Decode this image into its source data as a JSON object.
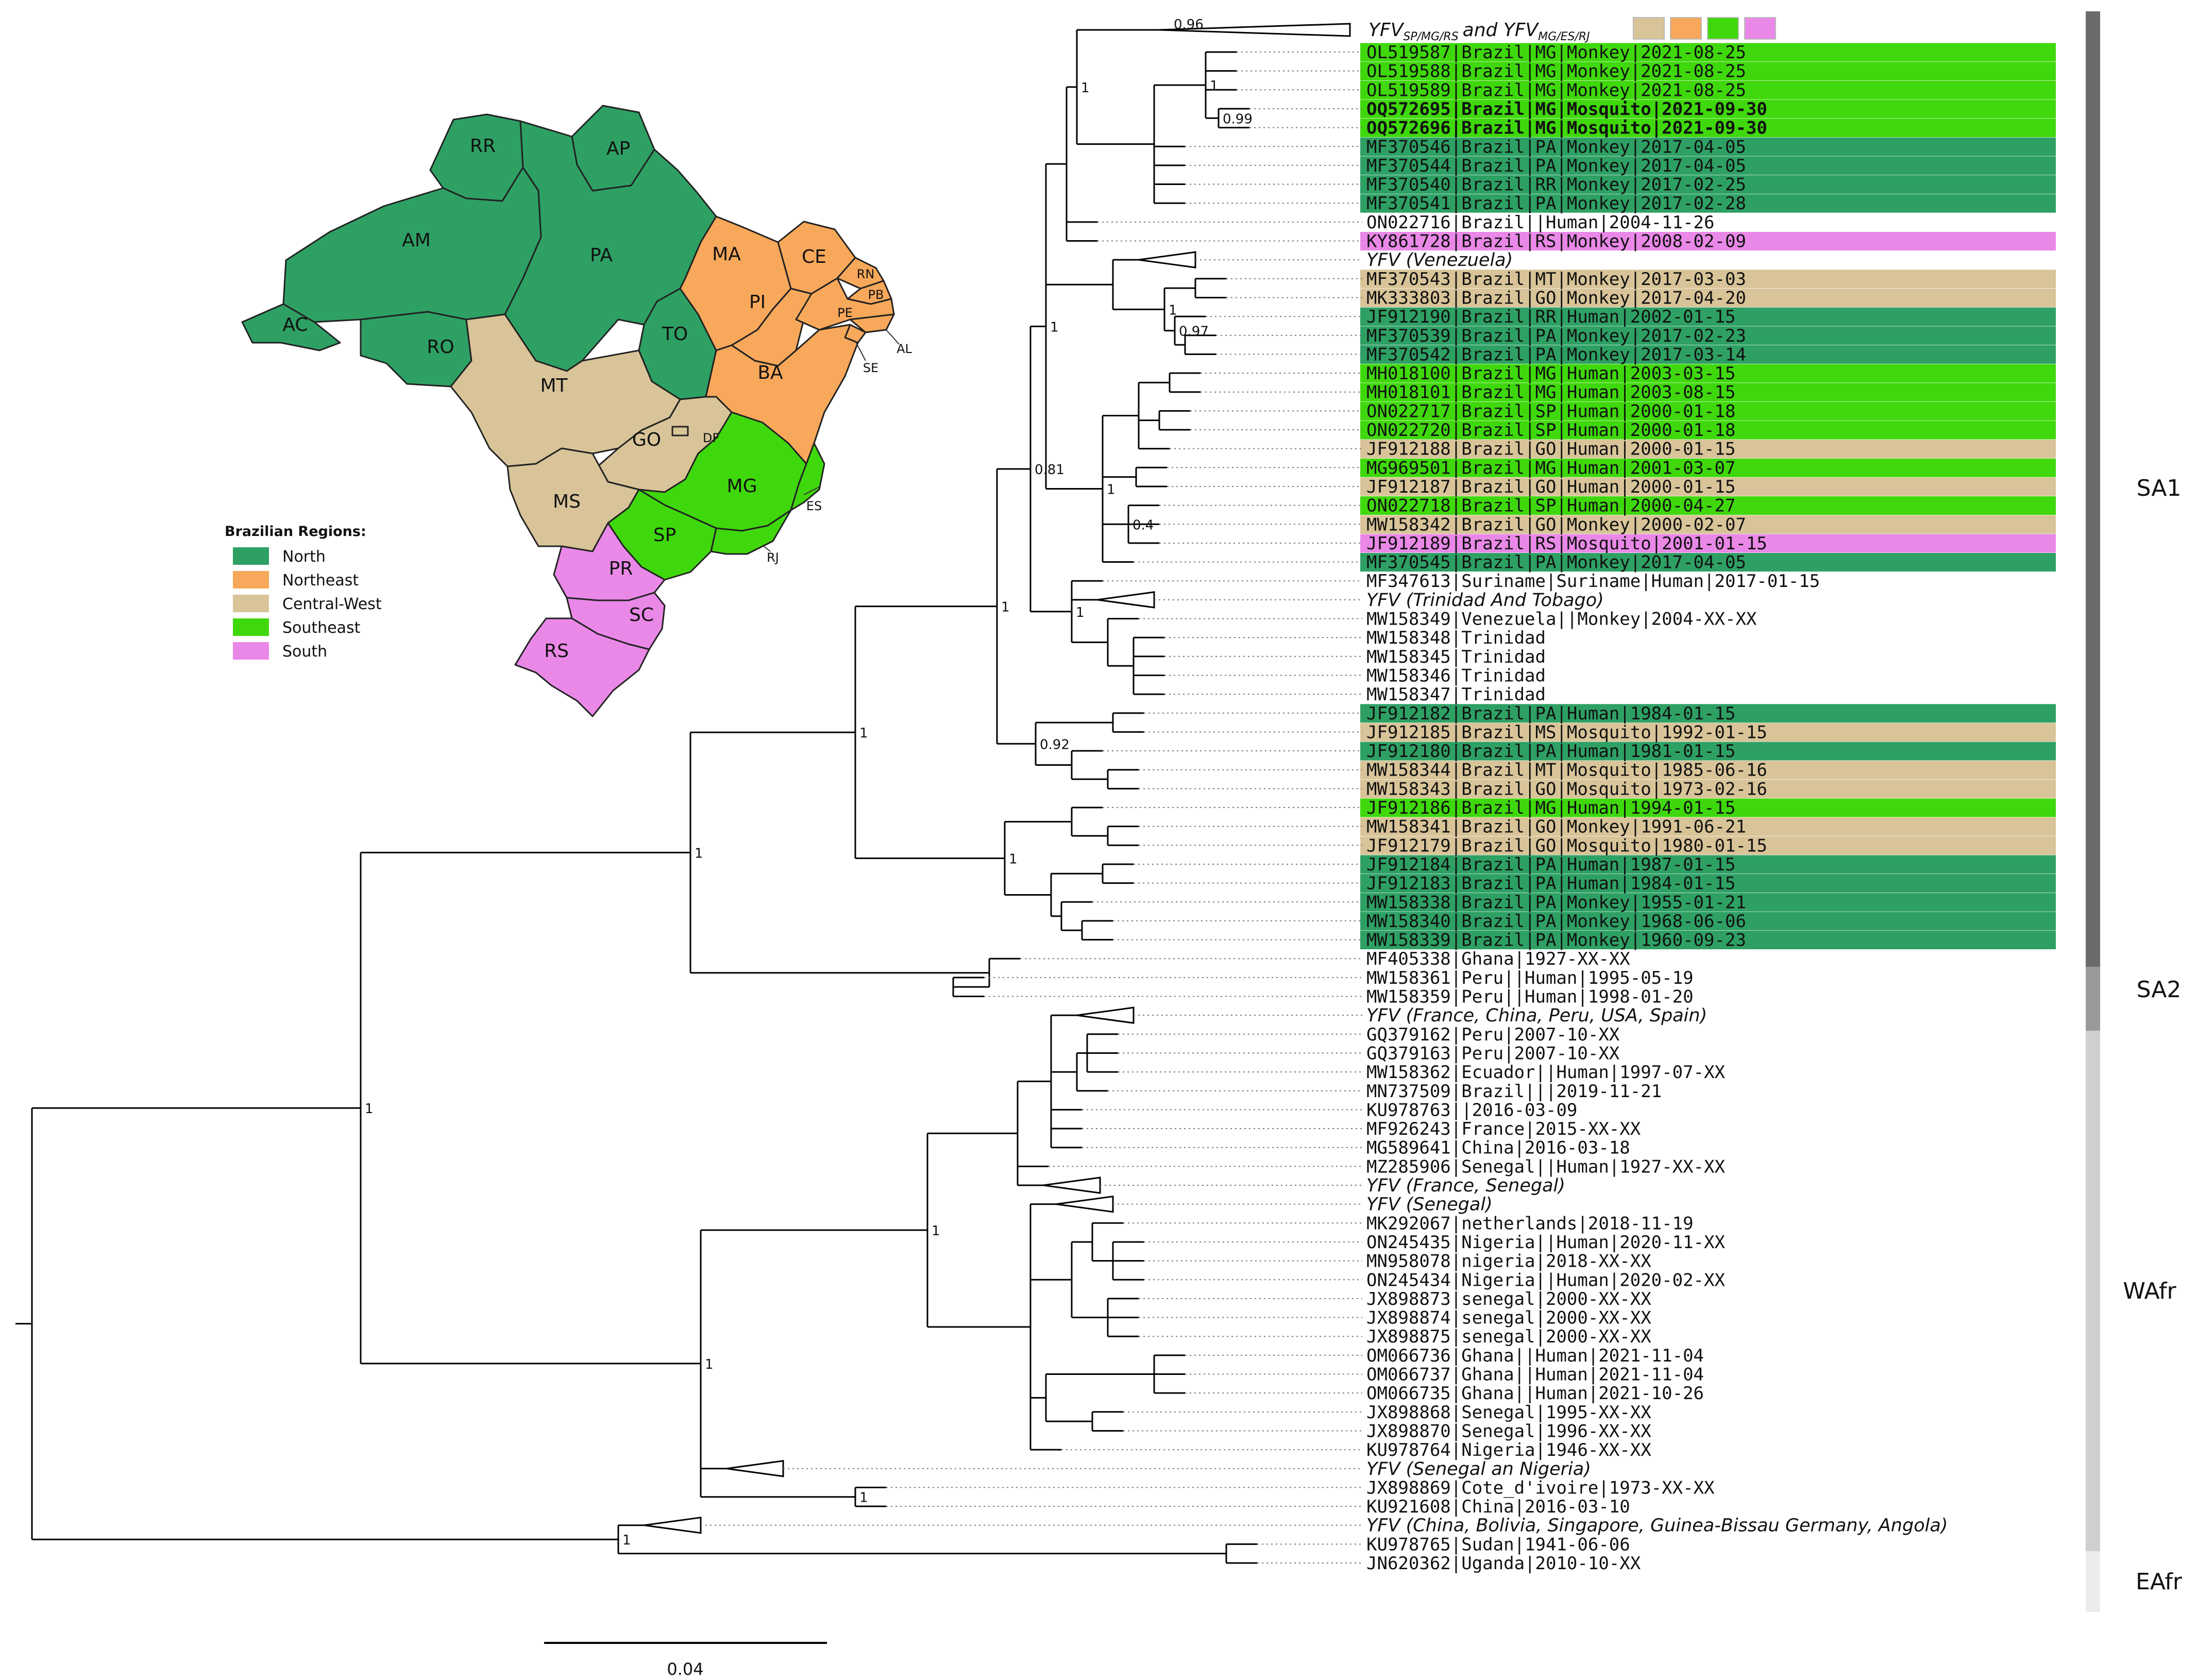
{
  "colors": {
    "North": "#2ea064",
    "Northeast": "#f7a85a",
    "Central-West": "#d8c498",
    "Southeast": "#3fd80c",
    "South": "#ea88e8"
  },
  "header": {
    "collapsed_main": "YFV",
    "sub1": "SP/MG/RS",
    "joiner": "and YFV",
    "sub2": "MG/ES/RJ",
    "support": "0.96",
    "swatches": [
      "Central-West",
      "Northeast",
      "Southeast",
      "South"
    ]
  },
  "tips": [
    {
      "label": "OL519587|Brazil|MG|Monkey|2021-08-25",
      "region": "Southeast"
    },
    {
      "label": "OL519588|Brazil|MG|Monkey|2021-08-25",
      "region": "Southeast"
    },
    {
      "label": "OL519589|Brazil|MG|Monkey|2021-08-25",
      "region": "Southeast"
    },
    {
      "label": "OQ572695|Brazil|MG|Mosquito|2021-09-30",
      "region": "Southeast",
      "bold": true
    },
    {
      "label": "OQ572696|Brazil|MG|Mosquito|2021-09-30",
      "region": "Southeast",
      "bold": true
    },
    {
      "label": "MF370546|Brazil|PA|Monkey|2017-04-05",
      "region": "North"
    },
    {
      "label": "MF370544|Brazil|PA|Monkey|2017-04-05",
      "region": "North"
    },
    {
      "label": "MF370540|Brazil|RR|Monkey|2017-02-25",
      "region": "North"
    },
    {
      "label": "MF370541|Brazil|PA|Monkey|2017-02-28",
      "region": "North"
    },
    {
      "label": "ON022716|Brazil||Human|2004-11-26"
    },
    {
      "label": "KY861728|Brazil|RS|Monkey|2008-02-09",
      "region": "South"
    },
    {
      "label": "YFV (Venezuela)",
      "collapsed": true
    },
    {
      "label": "MF370543|Brazil|MT|Monkey|2017-03-03",
      "region": "Central-West"
    },
    {
      "label": "MK333803|Brazil|GO|Monkey|2017-04-20",
      "region": "Central-West"
    },
    {
      "label": "JF912190|Brazil|RR|Human|2002-01-15",
      "region": "North"
    },
    {
      "label": "MF370539|Brazil|PA|Monkey|2017-02-23",
      "region": "North"
    },
    {
      "label": "MF370542|Brazil|PA|Monkey|2017-03-14",
      "region": "North"
    },
    {
      "label": "MH018100|Brazil|MG|Human|2003-03-15",
      "region": "Southeast"
    },
    {
      "label": "MH018101|Brazil|MG|Human|2003-08-15",
      "region": "Southeast"
    },
    {
      "label": "ON022717|Brazil|SP|Human|2000-01-18",
      "region": "Southeast"
    },
    {
      "label": "ON022720|Brazil|SP|Human|2000-01-18",
      "region": "Southeast"
    },
    {
      "label": "JF912188|Brazil|GO|Human|2000-01-15",
      "region": "Central-West"
    },
    {
      "label": "MG969501|Brazil|MG|Human|2001-03-07",
      "region": "Southeast"
    },
    {
      "label": "JF912187|Brazil|GO|Human|2000-01-15",
      "region": "Central-West"
    },
    {
      "label": "ON022718|Brazil|SP|Human|2000-04-27",
      "region": "Southeast"
    },
    {
      "label": "MW158342|Brazil|GO|Monkey|2000-02-07",
      "region": "Central-West"
    },
    {
      "label": "JF912189|Brazil|RS|Mosquito|2001-01-15",
      "region": "South"
    },
    {
      "label": "MF370545|Brazil|PA|Monkey|2017-04-05",
      "region": "North"
    },
    {
      "label": "MF347613|Suriname|Suriname|Human|2017-01-15"
    },
    {
      "label": "YFV (Trinidad And Tobago)",
      "collapsed": true
    },
    {
      "label": "MW158349|Venezuela||Monkey|2004-XX-XX"
    },
    {
      "label": "MW158348|Trinidad"
    },
    {
      "label": "MW158345|Trinidad"
    },
    {
      "label": "MW158346|Trinidad"
    },
    {
      "label": "MW158347|Trinidad"
    },
    {
      "label": "JF912182|Brazil|PA|Human|1984-01-15",
      "region": "North"
    },
    {
      "label": "JF912185|Brazil|MS|Mosquito|1992-01-15",
      "region": "Central-West"
    },
    {
      "label": "JF912180|Brazil|PA|Human|1981-01-15",
      "region": "North"
    },
    {
      "label": "MW158344|Brazil|MT|Mosquito|1985-06-16",
      "region": "Central-West"
    },
    {
      "label": "MW158343|Brazil|GO|Mosquito|1973-02-16",
      "region": "Central-West"
    },
    {
      "label": "JF912186|Brazil|MG|Human|1994-01-15",
      "region": "Southeast"
    },
    {
      "label": "MW158341|Brazil|GO|Monkey|1991-06-21",
      "region": "Central-West"
    },
    {
      "label": "JF912179|Brazil|GO|Mosquito|1980-01-15",
      "region": "Central-West"
    },
    {
      "label": "JF912184|Brazil|PA|Human|1987-01-15",
      "region": "North"
    },
    {
      "label": "JF912183|Brazil|PA|Human|1984-01-15",
      "region": "North"
    },
    {
      "label": "MW158338|Brazil|PA|Monkey|1955-01-21",
      "region": "North"
    },
    {
      "label": "MW158340|Brazil|PA|Monkey|1968-06-06",
      "region": "North"
    },
    {
      "label": "MW158339|Brazil|PA|Monkey|1960-09-23",
      "region": "North"
    },
    {
      "label": "MF405338|Ghana|1927-XX-XX"
    },
    {
      "label": "MW158361|Peru||Human|1995-05-19"
    },
    {
      "label": "MW158359|Peru||Human|1998-01-20"
    },
    {
      "label": "YFV (France, China, Peru, USA, Spain)",
      "collapsed": true
    },
    {
      "label": "GQ379162|Peru|2007-10-XX"
    },
    {
      "label": "GQ379163|Peru|2007-10-XX"
    },
    {
      "label": "MW158362|Ecuador||Human|1997-07-XX"
    },
    {
      "label": "MN737509|Brazil|||2019-11-21"
    },
    {
      "label": "KU978763||2016-03-09"
    },
    {
      "label": "MF926243|France|2015-XX-XX"
    },
    {
      "label": "MG589641|China|2016-03-18"
    },
    {
      "label": "MZ285906|Senegal||Human|1927-XX-XX"
    },
    {
      "label": "YFV (France, Senegal)",
      "collapsed": true
    },
    {
      "label": "YFV (Senegal)",
      "collapsed": true
    },
    {
      "label": "MK292067|netherlands|2018-11-19"
    },
    {
      "label": "ON245435|Nigeria||Human|2020-11-XX"
    },
    {
      "label": "MN958078|nigeria|2018-XX-XX"
    },
    {
      "label": "ON245434|Nigeria||Human|2020-02-XX"
    },
    {
      "label": "JX898873|senegal|2000-XX-XX"
    },
    {
      "label": "JX898874|senegal|2000-XX-XX"
    },
    {
      "label": "JX898875|senegal|2000-XX-XX"
    },
    {
      "label": "OM066736|Ghana||Human|2021-11-04"
    },
    {
      "label": "OM066737|Ghana||Human|2021-11-04"
    },
    {
      "label": "OM066735|Ghana||Human|2021-10-26"
    },
    {
      "label": "JX898868|Senegal|1995-XX-XX"
    },
    {
      "label": "JX898870|Senegal|1996-XX-XX"
    },
    {
      "label": "KU978764|Nigeria|1946-XX-XX"
    },
    {
      "label": "YFV (Senegal an Nigeria)",
      "collapsed": true
    },
    {
      "label": "JX898869|Cote_d'ivoire|1973-XX-XX"
    },
    {
      "label": "KU921608|China|2016-03-10"
    },
    {
      "label": "YFV (China, Bolivia, Singapore, Guinea-Bissau Germany, Angola)",
      "collapsed": true
    },
    {
      "label": "KU978765|Sudan|1941-06-06"
    },
    {
      "label": "JN620362|Uganda|2010-10-XX"
    }
  ],
  "support_values": [
    "1",
    "0.99",
    "0.81",
    "1",
    "1",
    "0.97",
    "1",
    "0.4",
    "1",
    "1",
    "0.92",
    "1",
    "1",
    "1",
    "1",
    "1",
    "1",
    "1",
    "1",
    "1"
  ],
  "clades": [
    {
      "name": "SA1",
      "shade": "#6b6b6b"
    },
    {
      "name": "SA2",
      "shade": "#9a9a9a"
    },
    {
      "name": "WAfr",
      "shade": "#cfcfcf"
    },
    {
      "name": "EAfr",
      "shade": "#ececec"
    }
  ],
  "scale_bar": {
    "label": "0.04",
    "value": 0.04
  },
  "legend": {
    "title": "Brazilian Regions:",
    "items": [
      "North",
      "Northeast",
      "Central-West",
      "Southeast",
      "South"
    ]
  },
  "map_states": [
    {
      "code": "RR",
      "region": "North"
    },
    {
      "code": "AP",
      "region": "North"
    },
    {
      "code": "AM",
      "region": "North"
    },
    {
      "code": "PA",
      "region": "North"
    },
    {
      "code": "AC",
      "region": "North"
    },
    {
      "code": "RO",
      "region": "North"
    },
    {
      "code": "TO",
      "region": "North"
    },
    {
      "code": "MA",
      "region": "Northeast"
    },
    {
      "code": "CE",
      "region": "Northeast"
    },
    {
      "code": "RN",
      "region": "Northeast"
    },
    {
      "code": "PB",
      "region": "Northeast"
    },
    {
      "code": "PI",
      "region": "Northeast"
    },
    {
      "code": "PE",
      "region": "Northeast"
    },
    {
      "code": "AL",
      "region": "Northeast"
    },
    {
      "code": "SE",
      "region": "Northeast"
    },
    {
      "code": "BA",
      "region": "Northeast"
    },
    {
      "code": "MT",
      "region": "Central-West"
    },
    {
      "code": "GO",
      "region": "Central-West"
    },
    {
      "code": "DF",
      "region": "Central-West"
    },
    {
      "code": "MS",
      "region": "Central-West"
    },
    {
      "code": "MG",
      "region": "Southeast"
    },
    {
      "code": "ES",
      "region": "Southeast"
    },
    {
      "code": "SP",
      "region": "Southeast"
    },
    {
      "code": "RJ",
      "region": "Southeast"
    },
    {
      "code": "PR",
      "region": "South"
    },
    {
      "code": "SC",
      "region": "South"
    },
    {
      "code": "RS",
      "region": "South"
    }
  ]
}
